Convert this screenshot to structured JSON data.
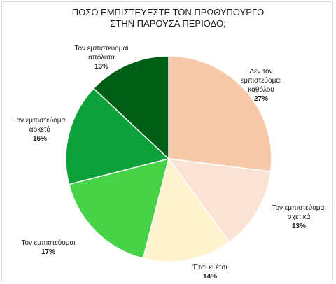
{
  "chart_data": {
    "type": "pie",
    "title_lines": [
      "ΠΟΣΟ ΕΜΠΙΣΤΕΥΕΣΤΕ ΤΟΝ ΠΡΩΘΥΠΟΥΡΓΟ",
      "ΣΤΗΝ ΠΑΡΟΥΣΑ ΠΕΡΙΟΔΟ;"
    ],
    "slices": [
      {
        "label_lines": [
          "Δεν τον",
          "εμπιστεύομαι",
          "καθόλου"
        ],
        "value": 27,
        "value_label": "27%",
        "color": "#f8c9a8"
      },
      {
        "label_lines": [
          "Τον εμπιστεύομαι",
          "σχετικά"
        ],
        "value": 13,
        "value_label": "13%",
        "color": "#fbe2d2"
      },
      {
        "label_lines": [
          "Έτσι κι έτσι"
        ],
        "value": 14,
        "value_label": "14%",
        "color": "#fff2cc"
      },
      {
        "label_lines": [
          "Τον εμπιστεύομαι"
        ],
        "value": 17,
        "value_label": "17%",
        "color": "#46d347"
      },
      {
        "label_lines": [
          "Τον εμπιστεύομαι",
          "αρκετά"
        ],
        "value": 16,
        "value_label": "16%",
        "color": "#0ea13a"
      },
      {
        "label_lines": [
          "Τον εμπιστεύομαι",
          "απόλυτα"
        ],
        "value": 13,
        "value_label": "13%",
        "color": "#005f17"
      }
    ],
    "start": "12 o'clock",
    "direction": "clockwise",
    "legend": "none",
    "data_labels": "outside"
  }
}
